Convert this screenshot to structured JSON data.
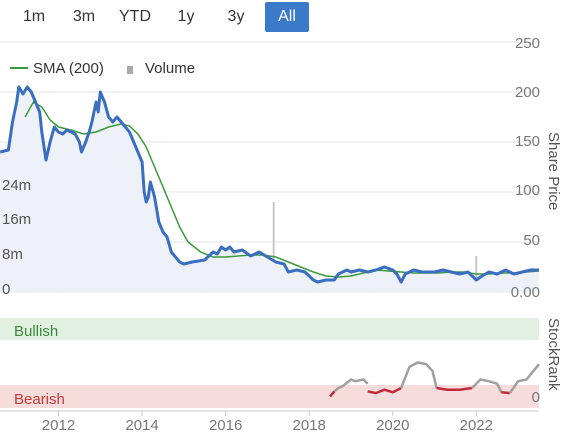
{
  "range_buttons": [
    {
      "label": "1m",
      "active": false
    },
    {
      "label": "3m",
      "active": false
    },
    {
      "label": "YTD",
      "active": false
    },
    {
      "label": "1y",
      "active": false
    },
    {
      "label": "3y",
      "active": false
    },
    {
      "label": "All",
      "active": true
    }
  ],
  "legend": {
    "sma_label": "SMA (200)",
    "volume_label": "Volume"
  },
  "axes": {
    "right_title": "Share Price",
    "price_ticks": [
      "250",
      "200",
      "150",
      "100",
      "50",
      "0.00"
    ],
    "volume_ticks": [
      "24m",
      "16m",
      "8m",
      "0"
    ],
    "x_ticks": [
      "2012",
      "2014",
      "2016",
      "2018",
      "2020",
      "2022"
    ],
    "rank_title": "StockRank",
    "rank_zero": "0"
  },
  "zones": {
    "bullish": "Bullish",
    "bearish": "Bearish"
  },
  "colors": {
    "price": "#3a6ec0",
    "sma": "#3a9a3a",
    "area": "#eef2f8",
    "volume": "#c8c8c8",
    "bullish_bg": "#e1f0e1",
    "bearish_bg": "#f7dcdc",
    "bullish_text": "#3a8a3a",
    "bearish_text": "#c03a3a",
    "rank_gray": "#a0a0a0",
    "rank_red": "#c02a3a",
    "active_button": "#3b7ac9"
  },
  "chart_data": {
    "type": "line",
    "x_range": [
      2010.6,
      2023.5
    ],
    "y_range": [
      0,
      250
    ],
    "series": [
      {
        "name": "Share Price",
        "points": [
          [
            2010.6,
            140
          ],
          [
            2010.8,
            142
          ],
          [
            2010.9,
            170
          ],
          [
            2011.0,
            190
          ],
          [
            2011.05,
            205
          ],
          [
            2011.15,
            198
          ],
          [
            2011.25,
            205
          ],
          [
            2011.35,
            200
          ],
          [
            2011.45,
            190
          ],
          [
            2011.55,
            180
          ],
          [
            2011.6,
            160
          ],
          [
            2011.7,
            132
          ],
          [
            2011.8,
            150
          ],
          [
            2011.9,
            165
          ],
          [
            2012.0,
            160
          ],
          [
            2012.1,
            158
          ],
          [
            2012.2,
            162
          ],
          [
            2012.3,
            160
          ],
          [
            2012.4,
            158
          ],
          [
            2012.5,
            150
          ],
          [
            2012.55,
            140
          ],
          [
            2012.65,
            150
          ],
          [
            2012.75,
            162
          ],
          [
            2012.8,
            170
          ],
          [
            2012.9,
            190
          ],
          [
            2012.95,
            180
          ],
          [
            2013.0,
            200
          ],
          [
            2013.1,
            190
          ],
          [
            2013.2,
            175
          ],
          [
            2013.3,
            170
          ],
          [
            2013.4,
            175
          ],
          [
            2013.5,
            170
          ],
          [
            2013.6,
            165
          ],
          [
            2013.7,
            160
          ],
          [
            2013.8,
            150
          ],
          [
            2013.9,
            140
          ],
          [
            2014.0,
            130
          ],
          [
            2014.05,
            100
          ],
          [
            2014.1,
            90
          ],
          [
            2014.15,
            95
          ],
          [
            2014.2,
            110
          ],
          [
            2014.3,
            95
          ],
          [
            2014.4,
            70
          ],
          [
            2014.5,
            60
          ],
          [
            2014.6,
            55
          ],
          [
            2014.7,
            40
          ],
          [
            2014.8,
            35
          ],
          [
            2014.9,
            30
          ],
          [
            2015.0,
            28
          ],
          [
            2015.2,
            30
          ],
          [
            2015.5,
            32
          ],
          [
            2015.7,
            40
          ],
          [
            2015.8,
            38
          ],
          [
            2015.9,
            45
          ],
          [
            2016.0,
            42
          ],
          [
            2016.1,
            45
          ],
          [
            2016.2,
            40
          ],
          [
            2016.4,
            42
          ],
          [
            2016.6,
            36
          ],
          [
            2016.8,
            40
          ],
          [
            2017.0,
            35
          ],
          [
            2017.2,
            30
          ],
          [
            2017.4,
            28
          ],
          [
            2017.5,
            20
          ],
          [
            2017.7,
            22
          ],
          [
            2017.9,
            20
          ],
          [
            2018.1,
            12
          ],
          [
            2018.2,
            10
          ],
          [
            2018.4,
            12
          ],
          [
            2018.6,
            12
          ],
          [
            2018.7,
            18
          ],
          [
            2018.9,
            22
          ],
          [
            2019.0,
            20
          ],
          [
            2019.2,
            22
          ],
          [
            2019.4,
            20
          ],
          [
            2019.6,
            22
          ],
          [
            2019.8,
            25
          ],
          [
            2020.0,
            22
          ],
          [
            2020.1,
            18
          ],
          [
            2020.2,
            10
          ],
          [
            2020.3,
            18
          ],
          [
            2020.5,
            22
          ],
          [
            2020.7,
            20
          ],
          [
            2021.0,
            20
          ],
          [
            2021.2,
            22
          ],
          [
            2021.4,
            20
          ],
          [
            2021.6,
            18
          ],
          [
            2021.8,
            20
          ],
          [
            2022.0,
            12
          ],
          [
            2022.1,
            15
          ],
          [
            2022.3,
            20
          ],
          [
            2022.5,
            18
          ],
          [
            2022.7,
            22
          ],
          [
            2022.9,
            18
          ],
          [
            2023.1,
            20
          ],
          [
            2023.3,
            22
          ],
          [
            2023.5,
            22
          ]
        ]
      },
      {
        "name": "SMA (200)",
        "points": [
          [
            2011.2,
            175
          ],
          [
            2011.4,
            190
          ],
          [
            2011.6,
            185
          ],
          [
            2011.8,
            172
          ],
          [
            2012.0,
            165
          ],
          [
            2012.3,
            162
          ],
          [
            2012.6,
            158
          ],
          [
            2012.9,
            160
          ],
          [
            2013.2,
            165
          ],
          [
            2013.5,
            168
          ],
          [
            2013.7,
            166
          ],
          [
            2013.9,
            158
          ],
          [
            2014.1,
            145
          ],
          [
            2014.3,
            125
          ],
          [
            2014.5,
            105
          ],
          [
            2014.7,
            85
          ],
          [
            2014.9,
            65
          ],
          [
            2015.1,
            50
          ],
          [
            2015.4,
            40
          ],
          [
            2015.7,
            35
          ],
          [
            2016.0,
            35
          ],
          [
            2016.3,
            36
          ],
          [
            2016.6,
            37
          ],
          [
            2016.9,
            37
          ],
          [
            2017.2,
            35
          ],
          [
            2017.5,
            30
          ],
          [
            2017.8,
            25
          ],
          [
            2018.1,
            20
          ],
          [
            2018.4,
            16
          ],
          [
            2018.7,
            15
          ],
          [
            2019.0,
            16
          ],
          [
            2019.3,
            19
          ],
          [
            2019.6,
            22
          ],
          [
            2019.9,
            21
          ],
          [
            2020.2,
            20
          ],
          [
            2020.5,
            19
          ],
          [
            2020.8,
            19
          ],
          [
            2021.1,
            19
          ],
          [
            2021.4,
            20
          ],
          [
            2021.7,
            20
          ],
          [
            2022.0,
            18
          ],
          [
            2022.3,
            18
          ],
          [
            2022.6,
            19
          ],
          [
            2022.9,
            19
          ],
          [
            2023.2,
            20
          ],
          [
            2023.5,
            21
          ]
        ]
      },
      {
        "name": "Volume",
        "bars": [
          [
            2011.0,
            1.5
          ],
          [
            2011.3,
            2.5
          ],
          [
            2011.6,
            2
          ],
          [
            2012.0,
            1.5
          ],
          [
            2012.4,
            1
          ],
          [
            2012.8,
            2
          ],
          [
            2013.2,
            1
          ],
          [
            2013.6,
            1
          ],
          [
            2014.0,
            2
          ],
          [
            2014.5,
            3
          ],
          [
            2015.0,
            2.5
          ],
          [
            2015.4,
            1.5
          ],
          [
            2015.9,
            2
          ],
          [
            2016.3,
            2
          ],
          [
            2016.7,
            1
          ],
          [
            2017.0,
            3
          ],
          [
            2017.15,
            20
          ],
          [
            2017.3,
            2
          ],
          [
            2017.6,
            2
          ],
          [
            2017.9,
            1.5
          ],
          [
            2018.3,
            2.5
          ],
          [
            2018.6,
            1
          ],
          [
            2019.0,
            1
          ],
          [
            2019.5,
            1.5
          ],
          [
            2020.0,
            2
          ],
          [
            2020.4,
            1
          ],
          [
            2020.8,
            2
          ],
          [
            2021.3,
            1
          ],
          [
            2021.8,
            2
          ],
          [
            2022.0,
            8
          ],
          [
            2022.3,
            1
          ],
          [
            2022.6,
            1.5
          ],
          [
            2023.0,
            1
          ],
          [
            2023.2,
            4
          ]
        ]
      },
      {
        "name": "StockRank",
        "segments": [
          {
            "color": "gray",
            "points": [
              [
                2018.6,
                16
              ],
              [
                2018.7,
                20
              ],
              [
                2018.8,
                22
              ],
              [
                2018.9,
                26
              ]
            ]
          },
          {
            "color": "red",
            "points": [
              [
                2018.5,
                10
              ],
              [
                2018.6,
                16
              ]
            ]
          },
          {
            "color": "gray",
            "points": [
              [
                2018.9,
                26
              ],
              [
                2019.0,
                30
              ],
              [
                2019.1,
                28
              ],
              [
                2019.3,
                30
              ],
              [
                2019.4,
                25
              ]
            ]
          },
          {
            "color": "red",
            "points": [
              [
                2019.4,
                16
              ],
              [
                2019.6,
                14
              ],
              [
                2019.8,
                18
              ],
              [
                2020.0,
                15
              ],
              [
                2020.2,
                20
              ]
            ]
          },
          {
            "color": "gray",
            "points": [
              [
                2020.2,
                20
              ],
              [
                2020.4,
                45
              ],
              [
                2020.6,
                50
              ],
              [
                2020.8,
                48
              ],
              [
                2020.95,
                40
              ],
              [
                2021.05,
                20
              ]
            ]
          },
          {
            "color": "red",
            "points": [
              [
                2021.05,
                20
              ],
              [
                2021.3,
                18
              ],
              [
                2021.6,
                18
              ],
              [
                2021.9,
                20
              ]
            ]
          },
          {
            "color": "gray",
            "points": [
              [
                2021.9,
                20
              ],
              [
                2022.1,
                30
              ],
              [
                2022.3,
                28
              ],
              [
                2022.5,
                25
              ],
              [
                2022.6,
                15
              ]
            ]
          },
          {
            "color": "red",
            "points": [
              [
                2022.6,
                15
              ],
              [
                2022.8,
                14
              ]
            ]
          },
          {
            "color": "gray",
            "points": [
              [
                2022.8,
                14
              ],
              [
                2023.0,
                28
              ],
              [
                2023.2,
                30
              ],
              [
                2023.4,
                42
              ],
              [
                2023.5,
                48
              ]
            ]
          }
        ]
      }
    ]
  }
}
